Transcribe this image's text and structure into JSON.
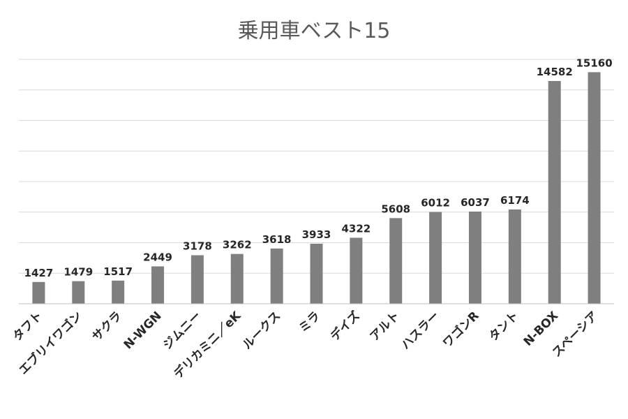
{
  "chart_data": {
    "type": "bar",
    "title": "乗用車ベスト15",
    "categories": [
      "タフト",
      "エブリイワゴン",
      "サクラ",
      "N-WGN",
      "ジムニー",
      "デリカミニ／eK",
      "ルークス",
      "ミラ",
      "デイズ",
      "アルト",
      "ハスラー",
      "ワゴンR",
      "タント",
      "N-BOX",
      "スペーシア"
    ],
    "values": [
      1427,
      1479,
      1517,
      2449,
      3178,
      3262,
      3618,
      3933,
      4322,
      5608,
      6012,
      6037,
      6174,
      14582,
      15160
    ],
    "ylim": [
      0,
      16000
    ],
    "grid": true,
    "legend": "none",
    "bar_color": "#7f7f7f"
  }
}
